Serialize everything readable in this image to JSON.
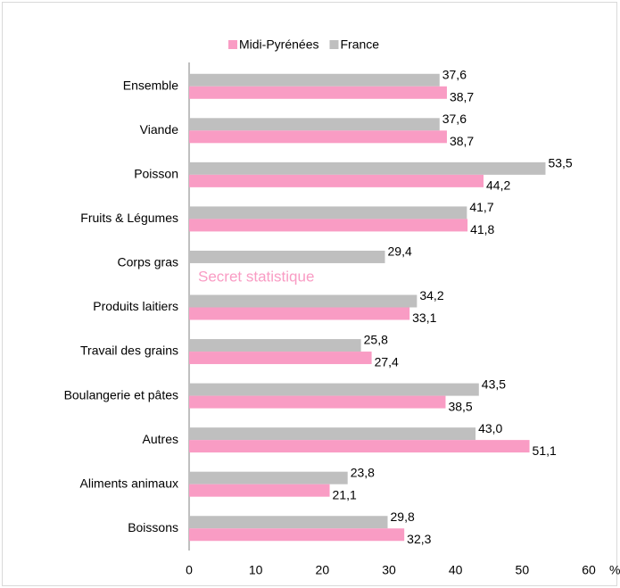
{
  "chart_data": {
    "type": "bar",
    "orientation": "horizontal",
    "categories": [
      "Ensemble",
      "Viande",
      "Poisson",
      "Fruits & Légumes",
      "Corps gras",
      "Produits laitiers",
      "Travail des grains",
      "Boulangerie et pâtes",
      "Autres",
      "Aliments animaux",
      "Boissons"
    ],
    "series": [
      {
        "name": "Midi-Pyrénées",
        "color": "#f99cc4",
        "values": [
          38.7,
          38.7,
          44.2,
          41.8,
          null,
          33.1,
          27.4,
          38.5,
          51.1,
          21.1,
          32.3
        ],
        "value_labels": [
          "38,7",
          "38,7",
          "44,2",
          "41,8",
          null,
          "33,1",
          "27,4",
          "38,5",
          "51,1",
          "21,1",
          "32,3"
        ]
      },
      {
        "name": "France",
        "color": "#bfbfbf",
        "values": [
          37.6,
          37.6,
          53.5,
          41.7,
          29.4,
          34.2,
          25.8,
          43.5,
          43.0,
          23.8,
          29.8
        ],
        "value_labels": [
          "37,6",
          "37,6",
          "53,5",
          "41,7",
          "29,4",
          "34,2",
          "25,8",
          "43,5",
          "43,0",
          "23,8",
          "29,8"
        ]
      }
    ],
    "annotation": "Secret statistique",
    "x_unit": "%",
    "xlim": [
      0,
      60
    ],
    "xticks": [
      0,
      10,
      20,
      30,
      40,
      50,
      60
    ],
    "grid": false,
    "legend": "top"
  }
}
